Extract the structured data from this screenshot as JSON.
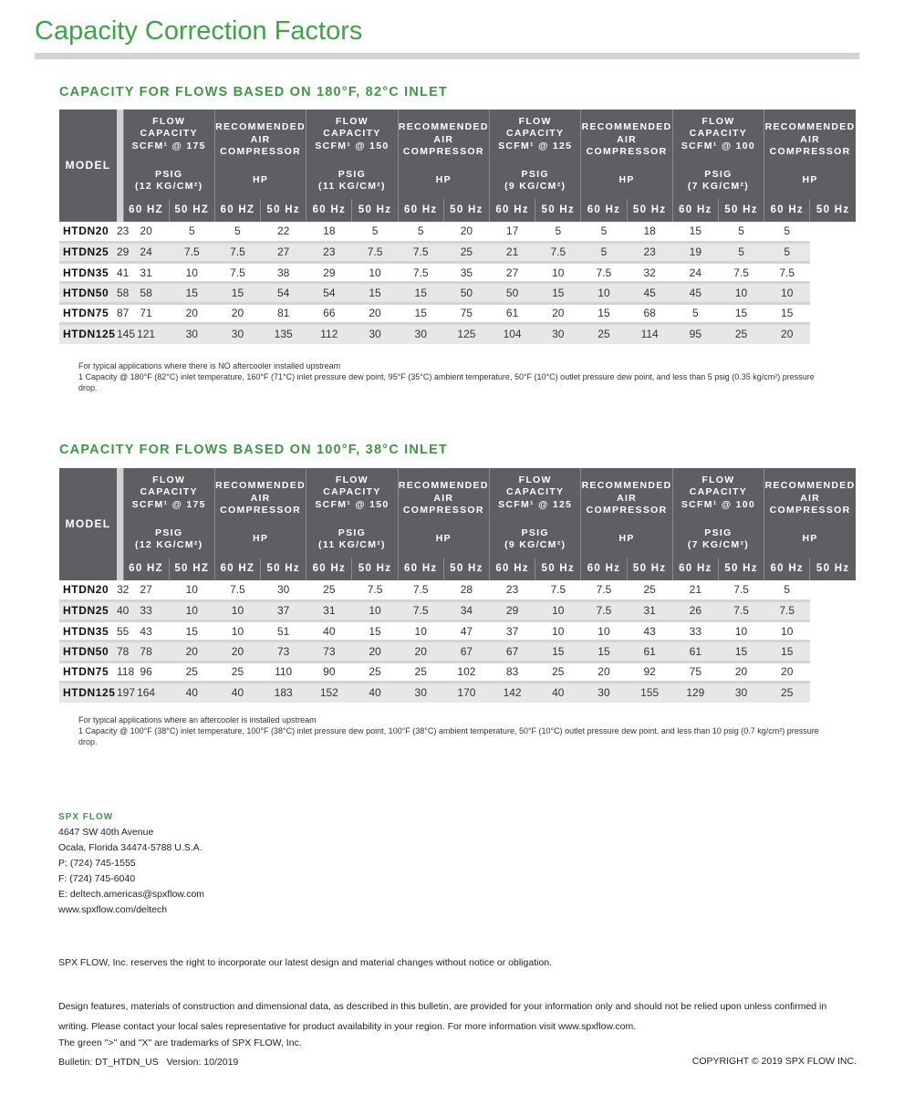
{
  "title": "Capacity Correction Factors",
  "tables": [
    {
      "heading": "CAPACITY FOR FLOWS BASED ON 180°F, 82°C INLET",
      "model_label": "MODEL",
      "groups": [
        {
          "top": [
            "FLOW",
            "CAPACITY",
            "SCFM¹ @ 175"
          ],
          "bottom": [
            "PSIG",
            "(12 KG/CM²)"
          ]
        },
        {
          "top": [
            "RECOMMENDED",
            "AIR",
            "COMPRESSOR"
          ],
          "bottom": [
            "HP"
          ]
        },
        {
          "top": [
            "FLOW",
            "CAPACITY",
            "SCFM¹ @ 150"
          ],
          "bottom": [
            "PSIG",
            "(11 KG/CM²)"
          ]
        },
        {
          "top": [
            "RECOMMENDED",
            "AIR",
            "COMPRESSOR"
          ],
          "bottom": [
            "HP"
          ]
        },
        {
          "top": [
            "FLOW",
            "CAPACITY",
            "SCFM¹ @ 125"
          ],
          "bottom": [
            "PSIG",
            "(9 KG/CM²)"
          ]
        },
        {
          "top": [
            "RECOMMENDED",
            "AIR",
            "COMPRESSOR"
          ],
          "bottom": [
            "HP"
          ]
        },
        {
          "top": [
            "FLOW",
            "CAPACITY",
            "SCFM¹ @ 100"
          ],
          "bottom": [
            "PSIG",
            "(7 KG/CM²)"
          ]
        },
        {
          "top": [
            "RECOMMENDED",
            "AIR",
            "COMPRESSOR"
          ],
          "bottom": [
            "HP"
          ]
        }
      ],
      "hz": [
        "60 HZ",
        "50 HZ",
        "60 HZ",
        "50 Hz",
        "60 Hz",
        "50 Hz",
        "60 Hz",
        "50 Hz",
        "60 Hz",
        "50 Hz",
        "60 Hz",
        "50 Hz",
        "60 Hz",
        "50 Hz",
        "60 Hz",
        "50 Hz"
      ],
      "rows": [
        {
          "model": "HTDN20",
          "values": [
            "23",
            "20",
            "5",
            "5",
            "22",
            "18",
            "5",
            "5",
            "20",
            "17",
            "5",
            "5",
            "18",
            "15",
            "5",
            "5"
          ]
        },
        {
          "model": "HTDN25",
          "values": [
            "29",
            "24",
            "7.5",
            "7.5",
            "27",
            "23",
            "7.5",
            "7.5",
            "25",
            "21",
            "7.5",
            "5",
            "23",
            "19",
            "5",
            "5"
          ]
        },
        {
          "model": "HTDN35",
          "values": [
            "41",
            "31",
            "10",
            "7.5",
            "38",
            "29",
            "10",
            "7.5",
            "35",
            "27",
            "10",
            "7.5",
            "32",
            "24",
            "7.5",
            "7.5"
          ]
        },
        {
          "model": "HTDN50",
          "values": [
            "58",
            "58",
            "15",
            "15",
            "54",
            "54",
            "15",
            "15",
            "50",
            "50",
            "15",
            "10",
            "45",
            "45",
            "10",
            "10"
          ]
        },
        {
          "model": "HTDN75",
          "values": [
            "87",
            "71",
            "20",
            "20",
            "81",
            "66",
            "20",
            "15",
            "75",
            "61",
            "20",
            "15",
            "68",
            "5",
            "15",
            "15"
          ]
        },
        {
          "model": "HTDN125",
          "values": [
            "145",
            "121",
            "30",
            "30",
            "135",
            "112",
            "30",
            "30",
            "125",
            "104",
            "30",
            "25",
            "114",
            "95",
            "25",
            "20"
          ]
        }
      ],
      "note_1": "For typical applications where there is NO aftercooler installed upstream",
      "note_2": "1  Capacity @ 180°F (82°C) inlet temperature, 160°F (71°C) inlet pressure dew point, 95°F (35°C) ambient temperature, 50°F (10°C) outlet pressure dew point, and less than 5 psig (0.35 kg/cm²) pressure drop."
    },
    {
      "heading": "CAPACITY FOR FLOWS BASED ON 100°F, 38°C INLET",
      "model_label": "MODEL",
      "groups": [
        {
          "top": [
            "FLOW",
            "CAPACITY",
            "SCFM¹ @ 175"
          ],
          "bottom": [
            "PSIG",
            "(12 KG/CM²)"
          ]
        },
        {
          "top": [
            "RECOMMENDED",
            "AIR",
            "COMPRESSOR"
          ],
          "bottom": [
            "HP"
          ]
        },
        {
          "top": [
            "FLOW",
            "CAPACITY",
            "SCFM¹ @ 150"
          ],
          "bottom": [
            "PSIG",
            "(11 KG/CM²)"
          ]
        },
        {
          "top": [
            "RECOMMENDED",
            "AIR",
            "COMPRESSOR"
          ],
          "bottom": [
            "HP"
          ]
        },
        {
          "top": [
            "FLOW",
            "CAPACITY",
            "SCFM¹ @ 125"
          ],
          "bottom": [
            "PSIG",
            "(9 KG/CM²)"
          ]
        },
        {
          "top": [
            "RECOMMENDED",
            "AIR",
            "COMPRESSOR"
          ],
          "bottom": [
            "HP"
          ]
        },
        {
          "top": [
            "FLOW",
            "CAPACITY",
            "SCFM¹ @ 100"
          ],
          "bottom": [
            "PSIG",
            "(7 KG/CM²)"
          ]
        },
        {
          "top": [
            "RECOMMENDED",
            "AIR",
            "COMPRESSOR"
          ],
          "bottom": [
            "HP"
          ]
        }
      ],
      "hz": [
        "60 HZ",
        "50 HZ",
        "60 HZ",
        "50 Hz",
        "60 Hz",
        "50 Hz",
        "60 Hz",
        "50 Hz",
        "60 Hz",
        "50 Hz",
        "60 Hz",
        "50 Hz",
        "60 Hz",
        "50 Hz",
        "60 Hz",
        "50 Hz"
      ],
      "rows": [
        {
          "model": "HTDN20",
          "values": [
            "32",
            "27",
            "10",
            "7.5",
            "30",
            "25",
            "7.5",
            "7.5",
            "28",
            "23",
            "7.5",
            "7.5",
            "25",
            "21",
            "7.5",
            "5"
          ]
        },
        {
          "model": "HTDN25",
          "values": [
            "40",
            "33",
            "10",
            "10",
            "37",
            "31",
            "10",
            "7.5",
            "34",
            "29",
            "10",
            "7.5",
            "31",
            "26",
            "7.5",
            "7.5"
          ]
        },
        {
          "model": "HTDN35",
          "values": [
            "55",
            "43",
            "15",
            "10",
            "51",
            "40",
            "15",
            "10",
            "47",
            "37",
            "10",
            "10",
            "43",
            "33",
            "10",
            "10"
          ]
        },
        {
          "model": "HTDN50",
          "values": [
            "78",
            "78",
            "20",
            "20",
            "73",
            "73",
            "20",
            "20",
            "67",
            "67",
            "15",
            "15",
            "61",
            "61",
            "15",
            "15"
          ]
        },
        {
          "model": "HTDN75",
          "values": [
            "118",
            "96",
            "25",
            "25",
            "110",
            "90",
            "25",
            "25",
            "102",
            "83",
            "25",
            "20",
            "92",
            "75",
            "20",
            "20"
          ]
        },
        {
          "model": "HTDN125",
          "values": [
            "197",
            "164",
            "40",
            "40",
            "183",
            "152",
            "40",
            "30",
            "170",
            "142",
            "40",
            "30",
            "155",
            "129",
            "30",
            "25"
          ]
        }
      ],
      "note_1": "For typical applications where an aftercooler is installed upstream",
      "note_2": "1  Capacity @ 100°F (38°C) inlet temperature, 100°F (38°C) inlet pressure dew point, 100°F (38°C) ambient temperature, 50°F (10°C) outlet pressure dew point, and less than 10 psig (0.7 kg/cm²) pressure drop."
    }
  ],
  "contact": {
    "company": "SPX FLOW",
    "lines": [
      "4647 SW 40th Avenue",
      "Ocala, Florida 34474-5788 U.S.A.",
      "P: (724) 745-1555",
      "F: (724) 745-6040",
      "E: deltech.americas@spxflow.com",
      "www.spxflow.com/deltech"
    ]
  },
  "footer": {
    "reserve": "SPX FLOW, Inc. reserves the right to incorporate our latest design and material changes without notice or obligation.",
    "design": "Design features, materials of construction and dimensional data, as described in this bulletin, are provided for your information only and should not be relied upon unless confirmed in writing. Please contact your local sales representative for product availability in your region. For more information visit www.spxflow.com.",
    "trademark": "The green \">\" and \"X\" are trademarks of SPX FLOW, Inc.",
    "bulletin": "Bulletin: DT_HTDN_US   Version: 10/2019",
    "copyright": "COPYRIGHT © 2019 SPX FLOW INC."
  },
  "colors": {
    "accent": "#3ba544",
    "header_bg": "#5e5f63",
    "row_alt": "#e6e7e8"
  }
}
